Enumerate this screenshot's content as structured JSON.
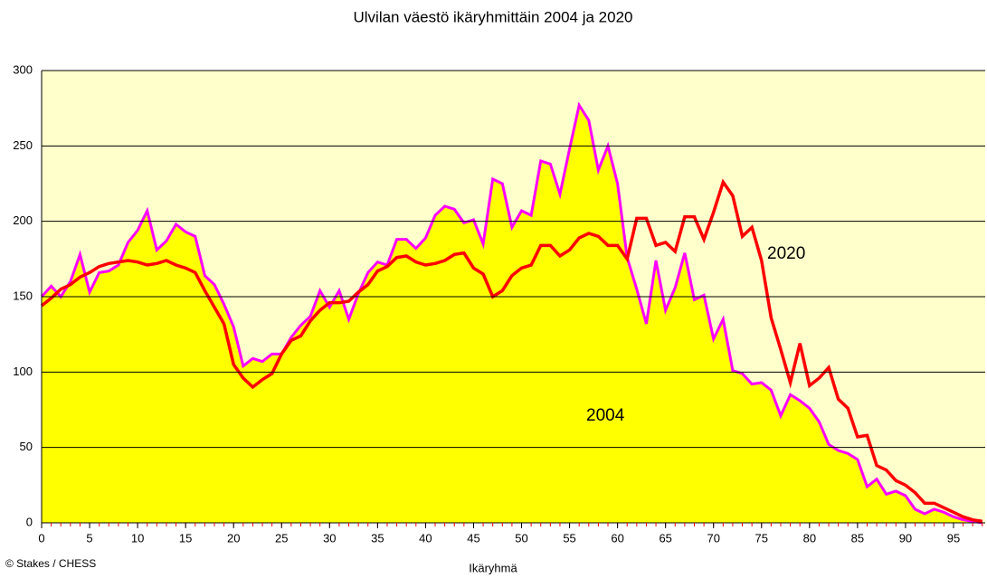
{
  "chart_data": {
    "type": "line",
    "title": "Ulvilan väestö ikäryhmittäin 2004 ja 2020",
    "x_label": "Ikäryhmä",
    "source": "© Stakes  / CHESS",
    "x": [
      0,
      1,
      2,
      3,
      4,
      5,
      6,
      7,
      8,
      9,
      10,
      11,
      12,
      13,
      14,
      15,
      16,
      17,
      18,
      19,
      20,
      21,
      22,
      23,
      24,
      25,
      26,
      27,
      28,
      29,
      30,
      31,
      32,
      33,
      34,
      35,
      36,
      37,
      38,
      39,
      40,
      41,
      42,
      43,
      44,
      45,
      46,
      47,
      48,
      49,
      50,
      51,
      52,
      53,
      54,
      55,
      56,
      57,
      58,
      59,
      60,
      61,
      62,
      63,
      64,
      65,
      66,
      67,
      68,
      69,
      70,
      71,
      72,
      73,
      74,
      75,
      76,
      77,
      78,
      79,
      80,
      81,
      82,
      83,
      84,
      85,
      86,
      87,
      88,
      89,
      90,
      91,
      92,
      93,
      94,
      95,
      96,
      97,
      98
    ],
    "series": [
      {
        "name": "2004",
        "color": "#ff00ff",
        "fill": "#ffff00",
        "style": "area",
        "values": [
          150,
          157,
          150,
          160,
          178,
          153,
          166,
          167,
          171,
          186,
          194,
          207,
          181,
          187,
          198,
          193,
          190,
          164,
          158,
          145,
          130,
          104,
          109,
          107,
          112,
          112,
          123,
          131,
          137,
          154,
          143,
          154,
          135,
          152,
          166,
          173,
          171,
          188,
          188,
          182,
          189,
          204,
          210,
          208,
          199,
          201,
          185,
          228,
          225,
          196,
          207,
          204,
          240,
          238,
          218,
          248,
          277,
          267,
          234,
          250,
          225,
          176,
          155,
          132,
          174,
          141,
          156,
          179,
          148,
          151,
          122,
          135,
          101,
          99,
          92,
          93,
          88,
          71,
          85,
          81,
          76,
          67,
          52,
          48,
          46,
          42,
          24,
          29,
          19,
          21,
          18,
          9,
          6,
          9,
          7,
          4,
          2,
          1,
          0
        ]
      },
      {
        "name": "2020",
        "color": "#ff0000",
        "style": "line",
        "values": [
          144,
          149,
          155,
          158,
          163,
          166,
          170,
          172,
          173,
          174,
          173,
          171,
          172,
          174,
          171,
          169,
          166,
          154,
          143,
          132,
          105,
          96,
          90,
          95,
          99,
          112,
          121,
          124,
          134,
          141,
          146,
          146,
          147,
          153,
          158,
          167,
          170,
          176,
          177,
          173,
          171,
          172,
          174,
          178,
          179,
          169,
          165,
          150,
          154,
          164,
          169,
          171,
          184,
          184,
          177,
          181,
          189,
          192,
          190,
          184,
          184,
          175,
          202,
          202,
          184,
          186,
          180,
          203,
          203,
          188,
          206,
          226,
          217,
          190,
          196,
          174,
          136,
          115,
          93,
          119,
          91,
          96,
          103,
          82,
          76,
          57,
          58,
          38,
          35,
          28,
          25,
          20,
          13,
          13,
          10,
          7,
          4,
          2,
          1
        ]
      }
    ],
    "xlim": [
      0,
      98.3
    ],
    "xticks": [
      0,
      5,
      10,
      15,
      20,
      25,
      30,
      35,
      40,
      45,
      50,
      55,
      60,
      65,
      70,
      75,
      80,
      85,
      90,
      95
    ],
    "ylim": [
      0,
      300
    ],
    "yticks": [
      0,
      50,
      100,
      150,
      200,
      250,
      300
    ],
    "grid": true,
    "background": "#ffffcc"
  }
}
